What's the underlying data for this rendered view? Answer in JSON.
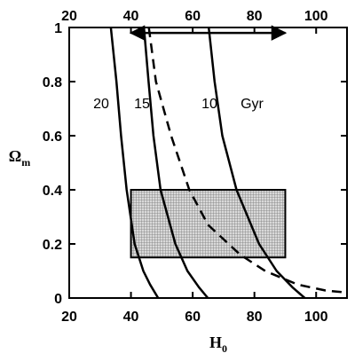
{
  "chart_data": {
    "type": "line",
    "title": "",
    "xlabel": {
      "main": "H",
      "sub": "0"
    },
    "ylabel": {
      "main": "Ω",
      "sub": "m"
    },
    "xlim": [
      20,
      110
    ],
    "ylim": [
      0,
      1
    ],
    "x_ticks": [
      20,
      40,
      60,
      80,
      100
    ],
    "x_ticks_top": [
      20,
      40,
      60,
      80,
      100
    ],
    "y_ticks": [
      0,
      0.2,
      0.4,
      0.6,
      0.8,
      1
    ],
    "y_tick_labels": [
      "0",
      "0.2",
      "0.4",
      "0.6",
      "0.8",
      "1"
    ],
    "grid": false,
    "legend": "none",
    "series": [
      {
        "name": "20",
        "style": "solid",
        "points": [
          [
            33.5,
            1.0
          ],
          [
            35.3,
            0.8
          ],
          [
            36.8,
            0.6
          ],
          [
            38.6,
            0.4
          ],
          [
            41.2,
            0.2
          ],
          [
            44.0,
            0.1
          ],
          [
            46.2,
            0.05
          ],
          [
            48.8,
            0.0
          ]
        ]
      },
      {
        "name": "15",
        "style": "solid",
        "points": [
          [
            44.2,
            1.0
          ],
          [
            45.7,
            0.8
          ],
          [
            47.3,
            0.6
          ],
          [
            49.6,
            0.4
          ],
          [
            54.4,
            0.2
          ],
          [
            58.3,
            0.1
          ],
          [
            62.0,
            0.04
          ],
          [
            64.9,
            0.0
          ]
        ]
      },
      {
        "name": "10",
        "style": "solid",
        "points": [
          [
            65.2,
            1.0
          ],
          [
            67.1,
            0.8
          ],
          [
            69.6,
            0.6
          ],
          [
            74.2,
            0.4
          ],
          [
            81.5,
            0.2
          ],
          [
            87.2,
            0.1
          ],
          [
            92.3,
            0.04
          ],
          [
            96.3,
            0.0
          ]
        ]
      },
      {
        "name": "",
        "style": "dashed",
        "points": [
          [
            45.8,
            1.0
          ],
          [
            48.1,
            0.8
          ],
          [
            53.0,
            0.6
          ],
          [
            58.9,
            0.4
          ],
          [
            65.0,
            0.27
          ],
          [
            75.4,
            0.16
          ],
          [
            83.5,
            0.1
          ],
          [
            94.0,
            0.05
          ],
          [
            103.0,
            0.028
          ],
          [
            110.0,
            0.02
          ]
        ]
      }
    ],
    "curve_labels": [
      "20",
      "15",
      "10",
      "Gyr"
    ],
    "shaded_region": {
      "x": [
        40,
        90
      ],
      "y": [
        0.15,
        0.4
      ],
      "fill": "crosshatch"
    },
    "arrow": {
      "x": [
        40,
        90
      ],
      "y": 0.98,
      "double_headed": true
    }
  }
}
